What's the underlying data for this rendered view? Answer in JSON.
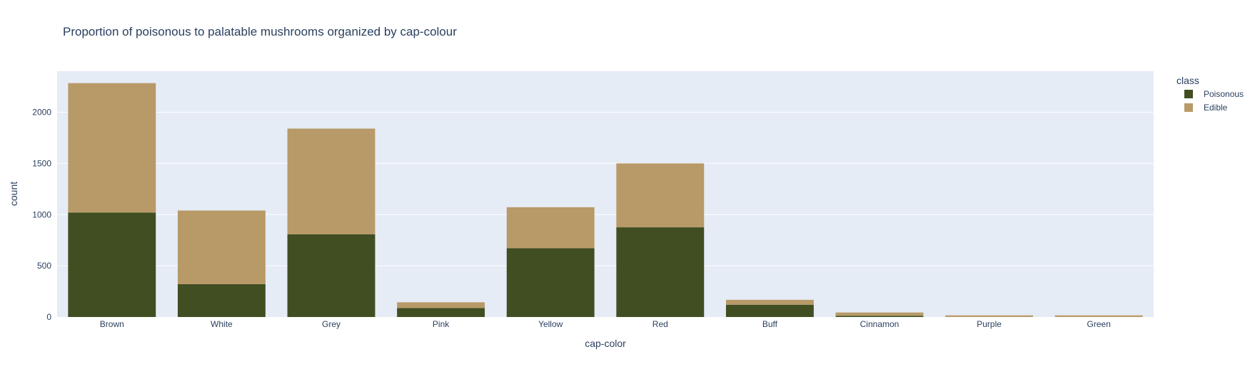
{
  "chart_data": {
    "type": "bar",
    "barmode": "stack",
    "title": "Proportion of poisonous to palatable mushrooms organized by cap-colour",
    "xlabel": "cap-color",
    "ylabel": "count",
    "categories": [
      "Brown",
      "White",
      "Grey",
      "Pink",
      "Yellow",
      "Red",
      "Buff",
      "Cinnamon",
      "Purple",
      "Green"
    ],
    "series": [
      {
        "name": "Poisonous",
        "color": "#404e22",
        "values": [
          1020,
          320,
          808,
          88,
          672,
          876,
          120,
          12,
          0,
          0
        ]
      },
      {
        "name": "Edible",
        "color": "#b89a68",
        "values": [
          1264,
          720,
          1032,
          56,
          400,
          624,
          48,
          32,
          16,
          16
        ]
      }
    ],
    "ylim": [
      0,
      2400
    ],
    "yticks": [
      0,
      500,
      1000,
      1500,
      2000
    ],
    "grid": true,
    "legend_title": "class",
    "legend_position": "top-right",
    "plot_background": "#e5ecf6"
  }
}
